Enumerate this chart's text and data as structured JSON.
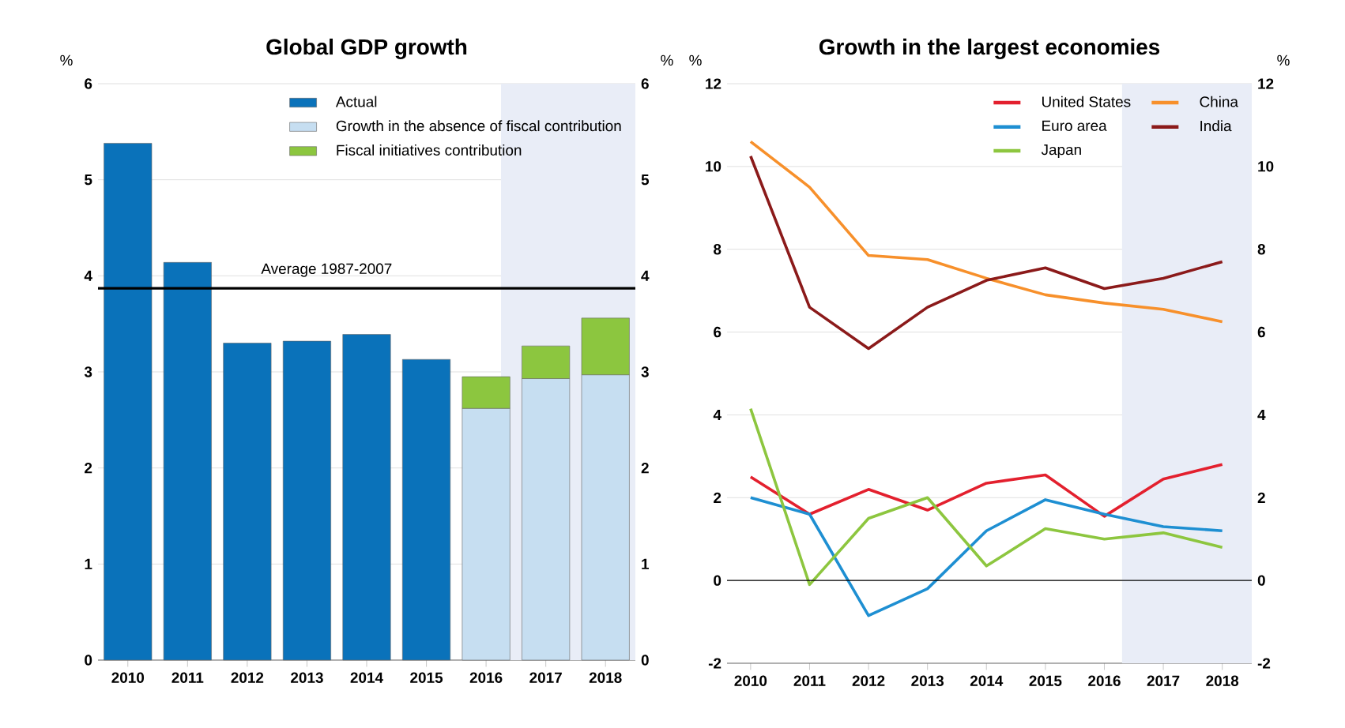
{
  "chart_data": [
    {
      "type": "bar",
      "title": "Global GDP growth",
      "ylabel": "%",
      "y2label": "%",
      "stacked": true,
      "x": [
        2010,
        2011,
        2012,
        2013,
        2014,
        2015,
        2016,
        2017,
        2018
      ],
      "xlim": [
        2009.5,
        2018.5
      ],
      "xticks": [
        2010,
        2011,
        2012,
        2013,
        2014,
        2015,
        2016,
        2017,
        2018
      ],
      "ylim": [
        0,
        6
      ],
      "yticks": [
        0,
        1,
        2,
        3,
        4,
        5,
        6
      ],
      "y2lim": [
        0,
        6
      ],
      "y2ticks": [
        0,
        1,
        2,
        3,
        4,
        5,
        6
      ],
      "grid": "y",
      "legend": "top right",
      "series": [
        {
          "name": "Actual",
          "color": "#0a72ba",
          "values": [
            5.38,
            4.14,
            3.3,
            3.32,
            3.39,
            3.13,
            null,
            null,
            null
          ]
        },
        {
          "name": "Growth in the absence of fiscal contribution",
          "color": "#c6def1",
          "values": [
            null,
            null,
            null,
            null,
            null,
            null,
            2.62,
            2.93,
            2.97
          ]
        },
        {
          "name": "Fiscal initiatives contribution",
          "color": "#8cc63f",
          "values": [
            null,
            null,
            null,
            null,
            null,
            null,
            0.33,
            0.34,
            0.59
          ]
        }
      ],
      "ref_lines": [
        {
          "axis": "y",
          "value": 3.87,
          "label": "Average 1987-2007",
          "color": "#000000"
        }
      ],
      "bands": [
        {
          "axis": "x",
          "from": 2016.25,
          "to": 2018.5,
          "color": "#e9edf7"
        }
      ]
    },
    {
      "type": "line",
      "title": "Growth in the largest economies",
      "ylabel": "%",
      "y2label": "%",
      "x": [
        2010,
        2011,
        2012,
        2013,
        2014,
        2015,
        2016,
        2017,
        2018
      ],
      "xlim": [
        2009.6,
        2018.5
      ],
      "xticks": [
        2010,
        2011,
        2012,
        2013,
        2014,
        2015,
        2016,
        2017,
        2018
      ],
      "ylim": [
        -2,
        12
      ],
      "yticks": [
        -2,
        0,
        2,
        4,
        6,
        8,
        10,
        12
      ],
      "y2lim": [
        -2,
        12
      ],
      "y2ticks": [
        -2,
        0,
        2,
        4,
        6,
        8,
        10,
        12
      ],
      "grid": "y",
      "legend": "top right",
      "series": [
        {
          "name": "United States",
          "color": "#e3202e",
          "values": [
            2.5,
            1.6,
            2.2,
            1.7,
            2.35,
            2.55,
            1.55,
            2.45,
            2.8
          ]
        },
        {
          "name": "China",
          "color": "#f7902b",
          "values": [
            10.6,
            9.5,
            7.85,
            7.75,
            7.3,
            6.9,
            6.7,
            6.55,
            6.25
          ]
        },
        {
          "name": "Euro area",
          "color": "#1e8fd2",
          "values": [
            2.0,
            1.6,
            -0.85,
            -0.2,
            1.2,
            1.95,
            1.6,
            1.3,
            1.2
          ]
        },
        {
          "name": "India",
          "color": "#8b1a1a",
          "values": [
            10.25,
            6.6,
            5.6,
            6.6,
            7.25,
            7.55,
            7.05,
            7.3,
            7.7
          ]
        },
        {
          "name": "Japan",
          "color": "#8dc63f",
          "values": [
            4.15,
            -0.1,
            1.5,
            2.0,
            0.35,
            1.25,
            1.0,
            1.15,
            0.8
          ]
        }
      ],
      "ref_lines": [
        {
          "axis": "y",
          "value": 0,
          "color": "#000000"
        }
      ],
      "bands": [
        {
          "axis": "x",
          "from": 2016.3,
          "to": 2018.5,
          "color": "#e9edf7"
        }
      ]
    }
  ]
}
